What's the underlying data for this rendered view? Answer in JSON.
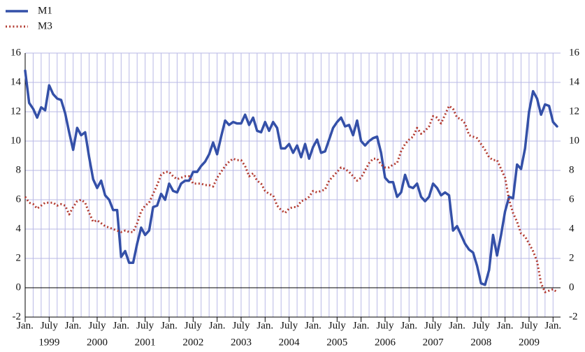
{
  "chart_data": {
    "type": "line",
    "legend": "top-left",
    "grid": true,
    "xlim": [
      0,
      133
    ],
    "xticks": [
      {
        "value": 0,
        "label": "Jan."
      },
      {
        "value": 6,
        "label": "July"
      },
      {
        "value": 12,
        "label": "Jan."
      },
      {
        "value": 18,
        "label": "July"
      },
      {
        "value": 24,
        "label": "Jan."
      },
      {
        "value": 30,
        "label": "July"
      },
      {
        "value": 36,
        "label": "Jan."
      },
      {
        "value": 42,
        "label": "July"
      },
      {
        "value": 48,
        "label": "Jan."
      },
      {
        "value": 54,
        "label": "July"
      },
      {
        "value": 60,
        "label": "Jan."
      },
      {
        "value": 66,
        "label": "July"
      },
      {
        "value": 72,
        "label": "Jan."
      },
      {
        "value": 78,
        "label": "July"
      },
      {
        "value": 84,
        "label": "Jan."
      },
      {
        "value": 90,
        "label": "July"
      },
      {
        "value": 96,
        "label": "Jan."
      },
      {
        "value": 102,
        "label": "July"
      },
      {
        "value": 108,
        "label": "Jan."
      },
      {
        "value": 114,
        "label": "July"
      },
      {
        "value": 120,
        "label": "Jan."
      },
      {
        "value": 126,
        "label": "July"
      },
      {
        "value": 132,
        "label": "Jan."
      }
    ],
    "year_labels": [
      {
        "value": 6,
        "label": "1999"
      },
      {
        "value": 18,
        "label": "2000"
      },
      {
        "value": 30,
        "label": "2001"
      },
      {
        "value": 42,
        "label": "2002"
      },
      {
        "value": 54,
        "label": "2003"
      },
      {
        "value": 66,
        "label": "2004"
      },
      {
        "value": 78,
        "label": "2005"
      },
      {
        "value": 90,
        "label": "2006"
      },
      {
        "value": 102,
        "label": "2007"
      },
      {
        "value": 114,
        "label": "2008"
      },
      {
        "value": 126,
        "label": "2009"
      }
    ],
    "ylim": [
      -2,
      16
    ],
    "yticks": [
      -2,
      0,
      2,
      4,
      6,
      8,
      10,
      12,
      14,
      16
    ],
    "series": [
      {
        "name": "M1",
        "color": "#3450a8",
        "style": "solid",
        "values": [
          14.8,
          12.6,
          12.2,
          11.6,
          12.3,
          12.1,
          13.8,
          13.2,
          12.9,
          12.8,
          11.9,
          10.6,
          9.4,
          10.9,
          10.4,
          10.6,
          8.9,
          7.4,
          6.8,
          7.3,
          6.3,
          6.0,
          5.3,
          5.3,
          2.1,
          2.5,
          1.7,
          1.7,
          3.0,
          4.1,
          3.6,
          3.9,
          5.5,
          5.6,
          6.4,
          6.0,
          7.1,
          6.6,
          6.5,
          7.1,
          7.3,
          7.3,
          7.9,
          7.9,
          8.3,
          8.6,
          9.1,
          9.9,
          9.1,
          10.3,
          11.4,
          11.1,
          11.3,
          11.2,
          11.2,
          11.8,
          11.1,
          11.6,
          10.7,
          10.6,
          11.3,
          10.7,
          11.3,
          10.9,
          9.5,
          9.5,
          9.8,
          9.2,
          9.7,
          8.9,
          9.8,
          8.8,
          9.6,
          10.1,
          9.2,
          9.3,
          10.1,
          10.9,
          11.3,
          11.6,
          11.0,
          11.1,
          10.4,
          11.4,
          10.0,
          9.7,
          10.0,
          10.2,
          10.3,
          9.2,
          7.5,
          7.2,
          7.2,
          6.2,
          6.5,
          7.7,
          6.9,
          6.8,
          7.1,
          6.2,
          5.9,
          6.2,
          7.1,
          6.8,
          6.3,
          6.5,
          6.3,
          3.9,
          4.2,
          3.6,
          3.0,
          2.6,
          2.4,
          1.5,
          0.3,
          0.2,
          1.2,
          3.6,
          2.2,
          3.6,
          5.2,
          6.2,
          6.1,
          8.4,
          8.1,
          9.5,
          12.0,
          13.4,
          12.9,
          11.8,
          12.5,
          12.4,
          11.3,
          11.0
        ]
      },
      {
        "name": "M3",
        "color": "#b23a30",
        "style": "dotted",
        "values": [
          6.2,
          5.8,
          5.7,
          5.4,
          5.6,
          5.8,
          5.8,
          5.8,
          5.6,
          5.7,
          5.6,
          5.0,
          5.5,
          5.9,
          6.0,
          5.8,
          5.1,
          4.5,
          4.6,
          4.4,
          4.2,
          4.1,
          4.0,
          3.9,
          3.8,
          3.9,
          3.8,
          3.8,
          4.4,
          5.2,
          5.6,
          5.8,
          6.4,
          7.0,
          7.7,
          7.9,
          7.9,
          7.6,
          7.4,
          7.5,
          7.6,
          7.6,
          7.1,
          7.1,
          7.1,
          7.0,
          7.0,
          6.9,
          7.5,
          7.9,
          8.3,
          8.6,
          8.8,
          8.7,
          8.7,
          8.3,
          7.6,
          7.8,
          7.3,
          7.1,
          6.6,
          6.4,
          6.3,
          5.6,
          5.3,
          5.1,
          5.4,
          5.5,
          5.5,
          5.9,
          6.0,
          6.2,
          6.6,
          6.5,
          6.6,
          6.7,
          7.3,
          7.6,
          7.9,
          8.2,
          8.1,
          7.9,
          7.6,
          7.3,
          7.5,
          8.0,
          8.5,
          8.8,
          8.8,
          8.4,
          8.2,
          8.2,
          8.4,
          8.5,
          9.3,
          9.8,
          10.1,
          10.3,
          10.9,
          10.5,
          10.7,
          11.0,
          11.7,
          11.6,
          11.2,
          11.8,
          12.4,
          12.2,
          11.6,
          11.5,
          11.2,
          10.4,
          10.3,
          10.2,
          9.8,
          9.4,
          8.9,
          8.7,
          8.7,
          8.1,
          7.5,
          6.0,
          5.1,
          4.5,
          3.7,
          3.5,
          3.0,
          2.5,
          1.8,
          0.3,
          -0.3,
          -0.2,
          -0.1,
          -0.3
        ]
      }
    ]
  }
}
